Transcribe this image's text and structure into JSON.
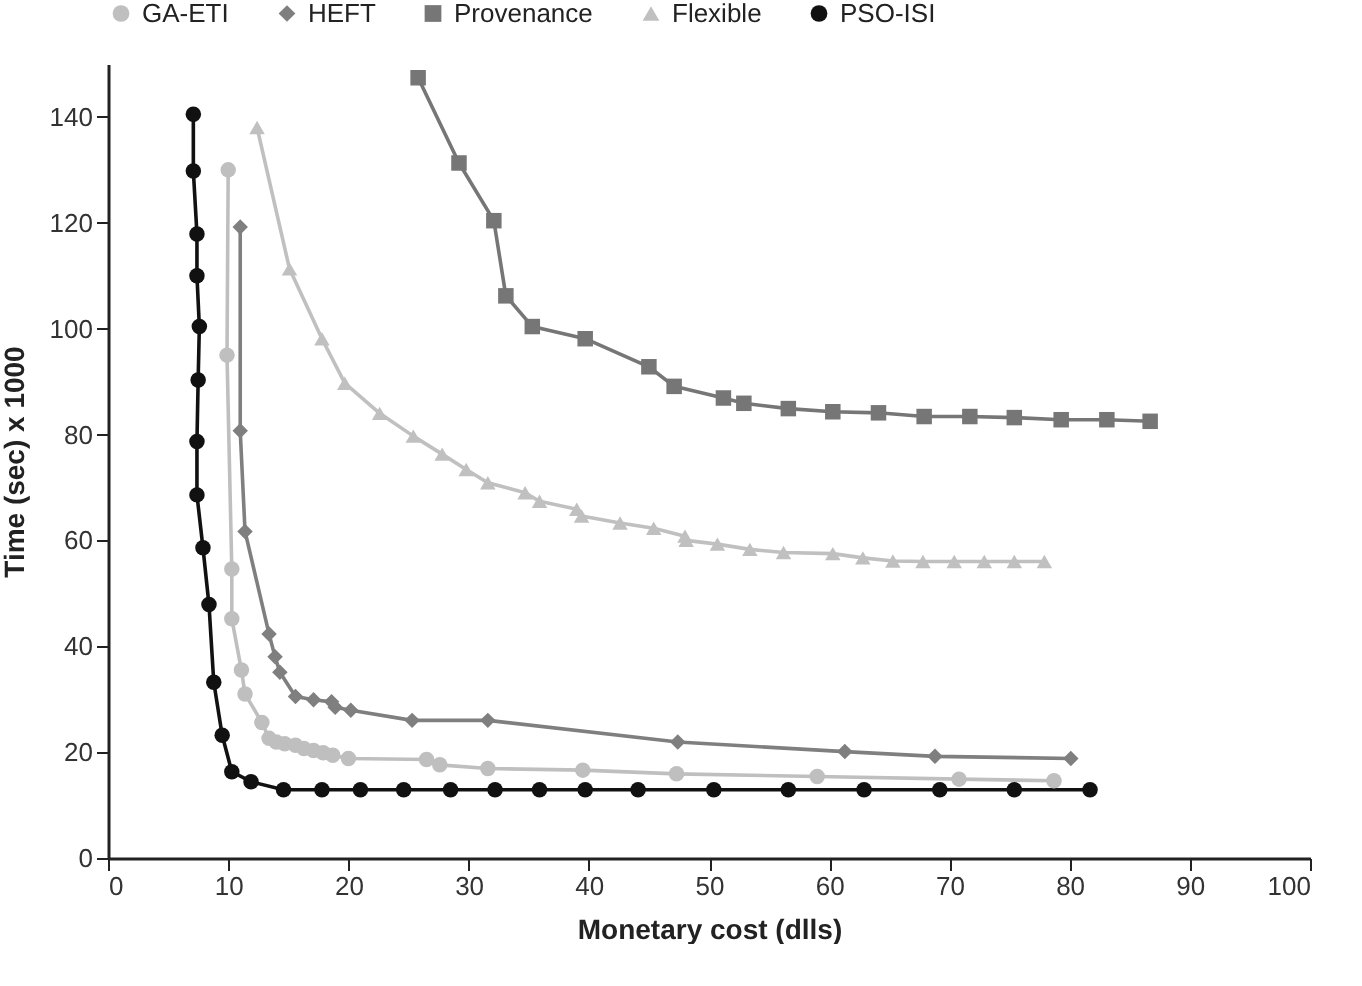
{
  "chart_data": {
    "type": "line",
    "xlabel": "Monetary cost (dlls)",
    "ylabel": "Time (sec) x 1000",
    "xlim": [
      0,
      100
    ],
    "ylim": [
      0,
      150
    ],
    "xticks": [
      0,
      10,
      20,
      30,
      40,
      50,
      60,
      70,
      80,
      90,
      100
    ],
    "yticks": [
      0,
      20,
      40,
      60,
      80,
      100,
      120,
      140
    ],
    "grid": false,
    "legend": "top",
    "line_style": "solid",
    "series": [
      {
        "name": "GA-ETI",
        "color": "#bfbfbf",
        "marker": "circle",
        "x": [
          10.0,
          9.9,
          10.3,
          10.3,
          11.1,
          11.4,
          12.8,
          13.4,
          14.0,
          14.7,
          15.6,
          16.3,
          17.1,
          17.9,
          18.7,
          20.0,
          26.5,
          27.6,
          31.6,
          39.5,
          47.3,
          59.0,
          70.8,
          78.7
        ],
        "values": [
          130,
          95,
          54.6,
          45.2,
          35.5,
          31,
          25.6,
          22.6,
          21.9,
          21.6,
          21.3,
          20.7,
          20.3,
          19.9,
          19.4,
          18.8,
          18.6,
          17.6,
          16.9,
          16.6,
          15.9,
          15.4,
          14.9,
          14.6
        ]
      },
      {
        "name": "HEFT",
        "color": "#7f7f7f",
        "marker": "diamond",
        "x": [
          11.0,
          11.0,
          11.4,
          13.4,
          13.9,
          14.3,
          15.6,
          17.1,
          18.6,
          18.9,
          20.2,
          25.3,
          31.6,
          47.4,
          61.3,
          68.8,
          80.1
        ],
        "values": [
          119.2,
          80.7,
          61.7,
          42.3,
          38,
          35.1,
          30.5,
          29.9,
          29.5,
          28.5,
          27.9,
          26,
          26,
          21.9,
          20.1,
          19.2,
          18.8
        ]
      },
      {
        "name": "Provenance",
        "color": "#767676",
        "marker": "square",
        "x": [
          25.8,
          29.2,
          32.1,
          33.1,
          35.3,
          39.7,
          45.0,
          47.1,
          51.2,
          52.9,
          56.6,
          60.3,
          64.1,
          67.9,
          71.7,
          75.4,
          79.3,
          83.1,
          86.7
        ],
        "values": [
          147.4,
          131.3,
          120.4,
          106.2,
          100.4,
          98.1,
          92.8,
          89.1,
          86.9,
          85.9,
          84.9,
          84.3,
          84.1,
          83.4,
          83.4,
          83.2,
          82.8,
          82.8,
          82.5
        ]
      },
      {
        "name": "Flexible",
        "color": "#c0c0c0",
        "marker": "triangle",
        "x": [
          12.4,
          15.1,
          17.8,
          19.7,
          22.6,
          25.4,
          27.8,
          29.8,
          31.6,
          34.7,
          35.9,
          39.0,
          39.4,
          42.6,
          45.4,
          48.0,
          48.1,
          50.7,
          53.4,
          56.2,
          60.3,
          62.8,
          65.3,
          67.8,
          70.4,
          72.9,
          75.4,
          77.9
        ],
        "values": [
          138,
          111.3,
          98.1,
          89.7,
          84,
          79.7,
          76.3,
          73.4,
          70.9,
          69,
          67.4,
          65.9,
          64.6,
          63.3,
          62.3,
          60.8,
          60,
          59.3,
          58.3,
          57.7,
          57.5,
          56.7,
          56.1,
          56,
          56,
          56,
          56,
          56
        ]
      },
      {
        "name": "PSO-ISI",
        "color": "#111111",
        "marker": "circle",
        "x": [
          7.1,
          7.1,
          7.4,
          7.4,
          7.6,
          7.5,
          7.4,
          7.4,
          7.9,
          8.4,
          8.8,
          9.5,
          10.3,
          11.9,
          14.6,
          17.8,
          21.0,
          24.6,
          28.5,
          32.2,
          35.9,
          39.7,
          44.1,
          50.4,
          56.6,
          62.9,
          69.2,
          75.4,
          81.7
        ],
        "values": [
          140.5,
          129.8,
          117.9,
          110,
          100.4,
          90.3,
          78.7,
          68.6,
          58.6,
          47.9,
          33.2,
          23.2,
          16.3,
          14.4,
          12.9,
          12.9,
          12.9,
          12.9,
          12.9,
          12.9,
          12.9,
          12.9,
          12.9,
          12.9,
          12.9,
          12.9,
          12.9,
          12.9,
          12.9
        ]
      }
    ]
  }
}
